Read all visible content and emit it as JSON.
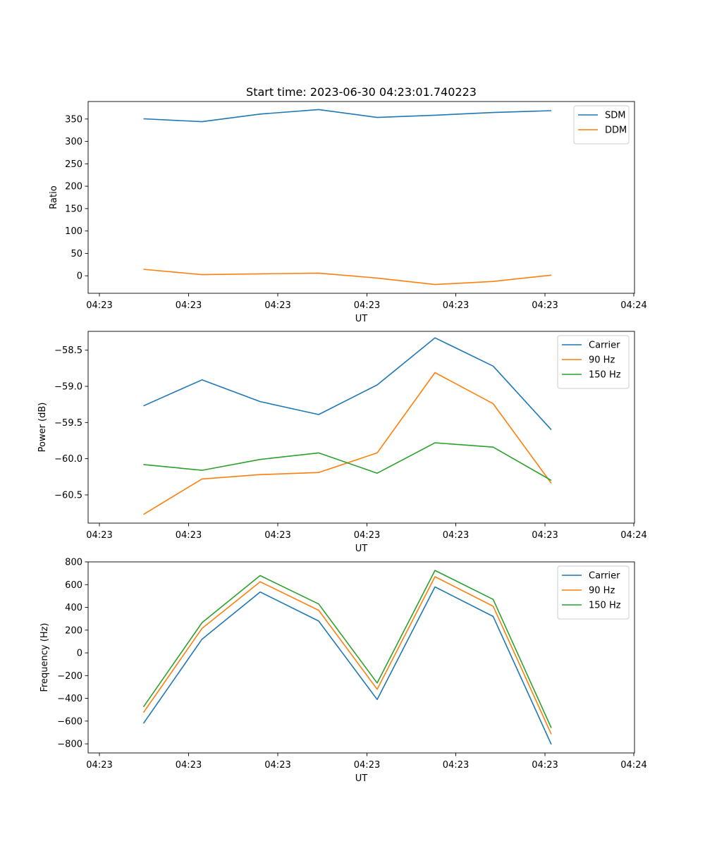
{
  "figure": {
    "title": "Start time: 2023-06-30 04:23:01.740223"
  },
  "chart_data": [
    {
      "type": "line",
      "title": "Start time: 2023-06-30 04:23:01.740223",
      "xlabel": "UT",
      "ylabel": "Ratio",
      "x_tick_labels": [
        "04:23",
        "04:23",
        "04:23",
        "04:23",
        "04:23",
        "04:23",
        "04:24"
      ],
      "y_ticks": [
        0,
        50,
        100,
        150,
        200,
        250,
        300,
        350
      ],
      "ylim": [
        -39,
        389
      ],
      "grid": false,
      "legend_position": "top-right",
      "series": [
        {
          "name": "SDM",
          "color": "#1f77b4",
          "values": [
            350.5,
            344.0,
            361.0,
            371.0,
            353.5,
            358.5,
            364.5,
            368.5
          ]
        },
        {
          "name": "DDM",
          "color": "#ff7f0e",
          "values": [
            14.5,
            2.5,
            4.5,
            6.0,
            -5.0,
            -19.5,
            -12.5,
            1.5
          ]
        }
      ]
    },
    {
      "type": "line",
      "xlabel": "UT",
      "ylabel": "Power (dB)",
      "x_tick_labels": [
        "04:23",
        "04:23",
        "04:23",
        "04:23",
        "04:23",
        "04:23",
        "04:24"
      ],
      "y_ticks": [
        -60.5,
        -60.0,
        -59.5,
        -59.0,
        -58.5
      ],
      "y_tick_labels": [
        "−60.5",
        "−60.0",
        "−59.5",
        "−59.0",
        "−58.5"
      ],
      "ylim": [
        -60.89,
        -58.24
      ],
      "grid": false,
      "legend_position": "top-right",
      "series": [
        {
          "name": "Carrier",
          "color": "#1f77b4",
          "values": [
            -59.27,
            -58.91,
            -59.21,
            -59.39,
            -58.98,
            -58.33,
            -58.72,
            -59.6
          ]
        },
        {
          "name": "90 Hz",
          "color": "#ff7f0e",
          "values": [
            -60.77,
            -60.28,
            -60.22,
            -60.19,
            -59.92,
            -58.81,
            -59.24,
            -60.34
          ]
        },
        {
          "name": "150 Hz",
          "color": "#2ca02c",
          "values": [
            -60.08,
            -60.16,
            -60.01,
            -59.92,
            -60.2,
            -59.78,
            -59.84,
            -60.3
          ]
        }
      ]
    },
    {
      "type": "line",
      "xlabel": "UT",
      "ylabel": "Frequency (Hz)",
      "x_tick_labels": [
        "04:23",
        "04:23",
        "04:23",
        "04:23",
        "04:23",
        "04:23",
        "04:24"
      ],
      "y_ticks": [
        -800,
        -600,
        -400,
        -200,
        0,
        200,
        400,
        600,
        800
      ],
      "y_tick_labels": [
        "−800",
        "−600",
        "−400",
        "−200",
        "0",
        "200",
        "400",
        "600",
        "800"
      ],
      "ylim": [
        -880,
        800
      ],
      "grid": false,
      "legend_position": "top-right",
      "series": [
        {
          "name": "Carrier",
          "color": "#1f77b4",
          "values": [
            -620,
            120,
            535,
            280,
            -410,
            580,
            320,
            -805
          ]
        },
        {
          "name": "90 Hz",
          "color": "#ff7f0e",
          "values": [
            -525,
            215,
            625,
            375,
            -320,
            670,
            410,
            -715
          ]
        },
        {
          "name": "150 Hz",
          "color": "#2ca02c",
          "values": [
            -475,
            265,
            680,
            430,
            -265,
            725,
            470,
            -660
          ]
        }
      ]
    }
  ]
}
